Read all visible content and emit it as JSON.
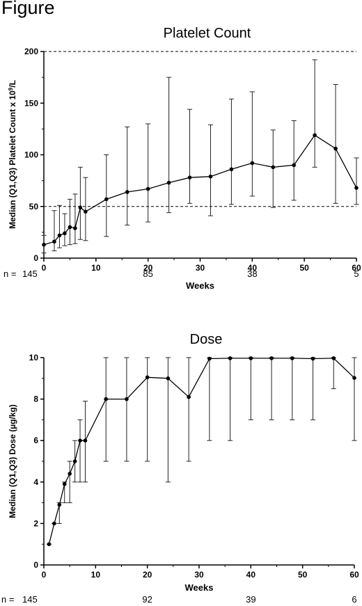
{
  "figure_title": "Figure",
  "chart_data": [
    {
      "type": "line",
      "title": "Platelet Count",
      "xlabel": "Weeks",
      "ylabel_main": "Median (Q1,Q3)  Platelet Count x 10",
      "ylabel_sup": "9",
      "ylabel_tail": "/L",
      "xlim": [
        0,
        60
      ],
      "ylim": [
        0,
        200
      ],
      "xticks": [
        0,
        10,
        20,
        30,
        40,
        50,
        60
      ],
      "yticks": [
        0,
        50,
        100,
        150,
        200
      ],
      "reference_lines": [
        50,
        200
      ],
      "x": [
        0,
        2,
        3,
        4,
        5,
        6,
        7,
        8,
        12,
        16,
        20,
        24,
        28,
        32,
        36,
        40,
        44,
        48,
        52,
        56,
        60
      ],
      "median": [
        13,
        16,
        22,
        24,
        30,
        29,
        49,
        45,
        57,
        64,
        67,
        73,
        78,
        79,
        86,
        92,
        88,
        90,
        119,
        106,
        68
      ],
      "q1": [
        5,
        7,
        10,
        12,
        13,
        14,
        18,
        17,
        21,
        32,
        35,
        44,
        53,
        41,
        52,
        60,
        49,
        56,
        88,
        53,
        52
      ],
      "q3": [
        22,
        46,
        51,
        43,
        57,
        62,
        88,
        78,
        100,
        127,
        130,
        175,
        144,
        129,
        154,
        161,
        124,
        133,
        192,
        168,
        97
      ],
      "n_label": "n =",
      "n_values": [
        {
          "week": 0,
          "n": "145"
        },
        {
          "week": 20,
          "n": "85"
        },
        {
          "week": 40,
          "n": "38"
        },
        {
          "week": 60,
          "n": "5"
        }
      ]
    },
    {
      "type": "line",
      "title": "Dose",
      "xlabel": "Weeks",
      "ylabel": "Median (Q1,Q3)  Dose (µg/kg)",
      "xlim": [
        0,
        60
      ],
      "ylim": [
        0,
        10
      ],
      "xticks": [
        0,
        10,
        20,
        30,
        40,
        50,
        60
      ],
      "yticks": [
        0,
        2,
        4,
        6,
        8,
        10
      ],
      "x": [
        1,
        2,
        3,
        4,
        5,
        6,
        7,
        8,
        12,
        16,
        20,
        24,
        28,
        32,
        36,
        40,
        44,
        48,
        52,
        56,
        60
      ],
      "median": [
        1,
        2,
        2.9,
        3.9,
        4.4,
        5,
        6,
        6,
        8,
        8,
        9.05,
        9,
        8.1,
        9.95,
        9.97,
        9.97,
        9.97,
        9.97,
        9.95,
        9.97,
        9.02
      ],
      "q1": [
        1,
        2,
        2,
        3,
        3,
        4,
        4,
        4,
        5,
        5,
        5,
        4,
        5,
        6,
        6,
        7,
        7,
        7,
        7,
        8.5,
        6
      ],
      "q3": [
        1,
        2,
        3,
        4,
        5,
        6,
        7,
        7.9,
        10,
        10,
        10,
        10,
        10,
        10,
        10,
        10,
        10,
        10,
        10,
        10,
        10
      ],
      "n_label": "n =",
      "n_values": [
        {
          "week": 0,
          "n": "145"
        },
        {
          "week": 20,
          "n": "92"
        },
        {
          "week": 40,
          "n": "39"
        },
        {
          "week": 60,
          "n": "6"
        }
      ]
    }
  ]
}
